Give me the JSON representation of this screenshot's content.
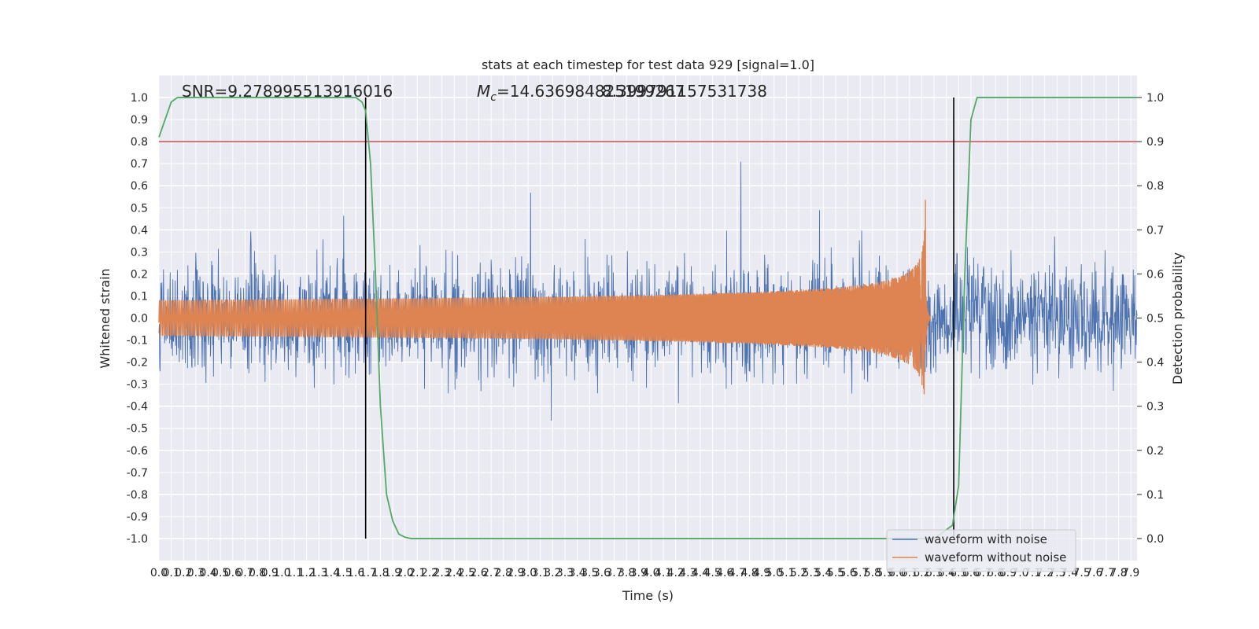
{
  "chart_data": {
    "type": "line",
    "title": "stats at each timestep for test data 929 [signal=1.0]",
    "xlabel": "Time (s)",
    "ylabel_left": "Whitened strain",
    "ylabel_right": "Detection probability",
    "annotations": {
      "snr": "SNR=9.278995513916016",
      "mc_symbol": "M",
      "mc_sub": "c",
      "mc_value": "=14.636984825199267",
      "overlap": "8.399791157531738"
    },
    "xlim": [
      0.0,
      7.95
    ],
    "ylim_left": [
      -1.1,
      1.1
    ],
    "ylim_right": [
      -0.05,
      1.05
    ],
    "x_ticks": [
      0.0,
      0.1,
      0.2,
      0.3,
      0.4,
      0.5,
      0.6,
      0.7,
      0.8,
      0.9,
      1.0,
      1.1,
      1.2,
      1.3,
      1.4,
      1.5,
      1.6,
      1.7,
      1.8,
      1.9,
      2.0,
      2.1,
      2.2,
      2.3,
      2.4,
      2.5,
      2.6,
      2.7,
      2.8,
      2.9,
      3.0,
      3.1,
      3.2,
      3.3,
      3.4,
      3.5,
      3.6,
      3.7,
      3.8,
      3.9,
      4.0,
      4.1,
      4.2,
      4.3,
      4.4,
      4.5,
      4.6,
      4.7,
      4.8,
      4.9,
      5.0,
      5.1,
      5.2,
      5.3,
      5.4,
      5.5,
      5.6,
      5.7,
      5.8,
      5.9,
      6.0,
      6.1,
      6.2,
      6.3,
      6.4,
      6.5,
      6.6,
      6.7,
      6.8,
      6.9,
      7.0,
      7.1,
      7.2,
      7.3,
      7.4,
      7.5,
      7.6,
      7.7,
      7.8,
      7.9
    ],
    "y_ticks_left": [
      -1.0,
      -0.9,
      -0.8,
      -0.7,
      -0.6,
      -0.5,
      -0.4,
      -0.3,
      -0.2,
      -0.1,
      0.0,
      0.1,
      0.2,
      0.3,
      0.4,
      0.5,
      0.6,
      0.7,
      0.8,
      0.9,
      1.0
    ],
    "y_ticks_right": [
      0.0,
      0.1,
      0.2,
      0.3,
      0.4,
      0.5,
      0.6,
      0.7,
      0.8,
      0.9,
      1.0
    ],
    "grid": true,
    "legend_position": "bottom-right",
    "threshold": {
      "value": 0.9,
      "axis": "right",
      "color": "#c44e52"
    },
    "vertical_markers": [
      1.68,
      6.46
    ],
    "series": [
      {
        "name": "waveform with noise",
        "color": "#4c72b0",
        "kind": "noise",
        "duration": 7.95,
        "peak": 1.0
      },
      {
        "name": "waveform without noise",
        "color": "#dd8452",
        "kind": "chirp",
        "merger_time": 6.23,
        "peak_amplitude": 0.55,
        "duration": 6.27
      },
      {
        "color": "#55a868",
        "kind": "probability",
        "axis": "right",
        "x": [
          0.0,
          0.05,
          0.1,
          0.15,
          0.3,
          0.6,
          1.0,
          1.4,
          1.6,
          1.65,
          1.68,
          1.72,
          1.76,
          1.8,
          1.85,
          1.9,
          1.95,
          2.0,
          2.05,
          2.1,
          2.2,
          3.0,
          4.0,
          5.0,
          6.0,
          6.3,
          6.45,
          6.5,
          6.55,
          6.6,
          6.65,
          6.8,
          7.2,
          7.6,
          7.95
        ],
        "y": [
          0.91,
          0.95,
          0.99,
          1.0,
          1.0,
          1.0,
          1.0,
          1.0,
          1.0,
          0.99,
          0.97,
          0.85,
          0.6,
          0.3,
          0.1,
          0.04,
          0.01,
          0.003,
          0.0,
          0.0,
          0.0,
          0.0,
          0.0,
          0.0,
          0.0,
          0.0,
          0.03,
          0.12,
          0.6,
          0.95,
          1.0,
          1.0,
          1.0,
          1.0,
          1.0
        ]
      }
    ]
  }
}
